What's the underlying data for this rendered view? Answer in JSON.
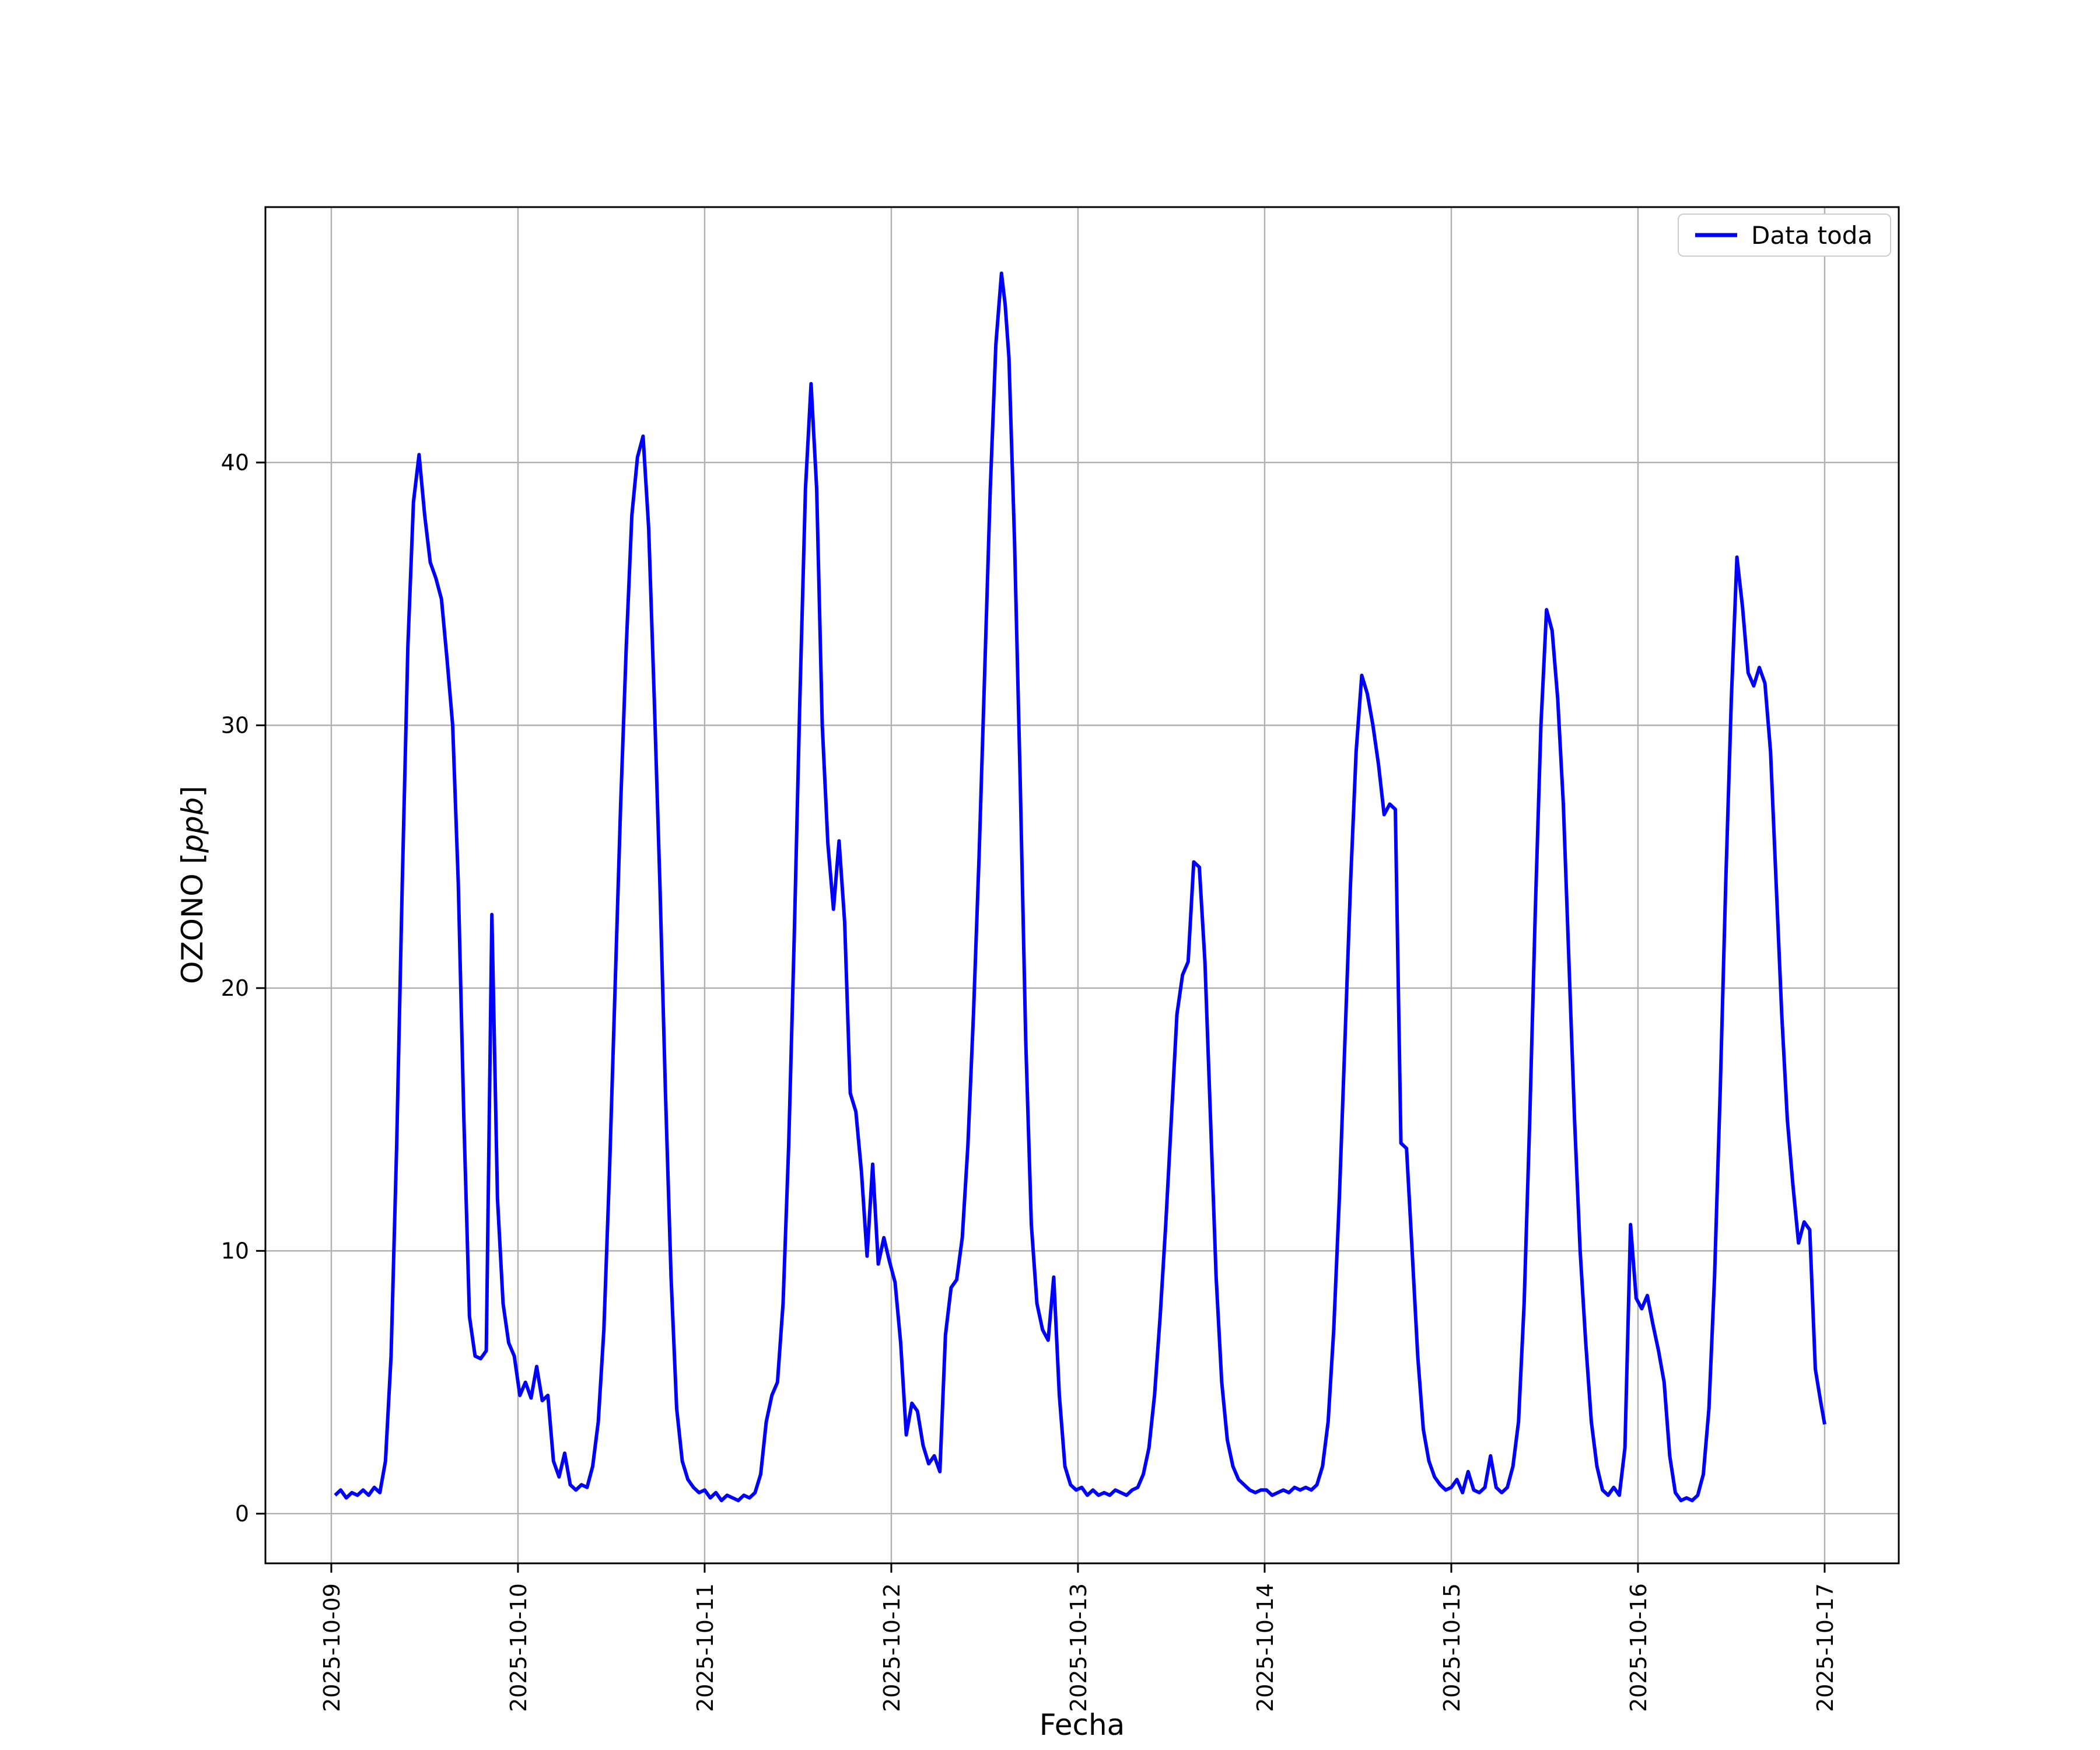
{
  "figure": {
    "background": "#ffffff"
  },
  "chart_data": {
    "type": "line",
    "title": "",
    "xlabel": "Fecha",
    "ylabel_prefix": "OZONO [",
    "ylabel_math": "ppb",
    "ylabel_suffix": "]",
    "line_color": "#0000ff",
    "grid": true,
    "grid_color": "#b0b0b0",
    "legend": {
      "position": "upper right",
      "entries": [
        {
          "label": "Data toda",
          "color": "#0000ff"
        }
      ]
    },
    "xlim_days": [
      -0.353,
      8.397
    ],
    "ylim": [
      -1.89,
      49.72
    ],
    "yticks": [
      0,
      10,
      20,
      30,
      40
    ],
    "xticks": [
      {
        "label": "2025-10-09",
        "day": 0
      },
      {
        "label": "2025-10-10",
        "day": 1
      },
      {
        "label": "2025-10-11",
        "day": 2
      },
      {
        "label": "2025-10-12",
        "day": 3
      },
      {
        "label": "2025-10-13",
        "day": 4
      },
      {
        "label": "2025-10-14",
        "day": 5
      },
      {
        "label": "2025-10-15",
        "day": 6
      },
      {
        "label": "2025-10-16",
        "day": 7
      },
      {
        "label": "2025-10-17",
        "day": 8
      }
    ],
    "series": [
      {
        "name": "Data toda",
        "x": [
          0.02,
          0.05,
          0.08,
          0.11,
          0.14,
          0.17,
          0.2,
          0.23,
          0.26,
          0.29,
          0.32,
          0.35,
          0.38,
          0.41,
          0.44,
          0.47,
          0.5,
          0.53,
          0.56,
          0.59,
          0.62,
          0.65,
          0.68,
          0.71,
          0.74,
          0.77,
          0.8,
          0.83,
          0.86,
          0.89,
          0.92,
          0.95,
          0.98,
          1.01,
          1.04,
          1.07,
          1.1,
          1.13,
          1.16,
          1.19,
          1.22,
          1.25,
          1.28,
          1.31,
          1.34,
          1.37,
          1.4,
          1.43,
          1.46,
          1.49,
          1.52,
          1.55,
          1.58,
          1.61,
          1.64,
          1.67,
          1.7,
          1.73,
          1.76,
          1.79,
          1.82,
          1.85,
          1.88,
          1.91,
          1.94,
          1.97,
          2.0,
          2.03,
          2.06,
          2.09,
          2.12,
          2.15,
          2.18,
          2.21,
          2.24,
          2.27,
          2.3,
          2.33,
          2.36,
          2.39,
          2.42,
          2.45,
          2.48,
          2.51,
          2.54,
          2.57,
          2.6,
          2.63,
          2.66,
          2.69,
          2.72,
          2.75,
          2.78,
          2.81,
          2.84,
          2.87,
          2.9,
          2.93,
          2.96,
          2.99,
          3.02,
          3.05,
          3.08,
          3.11,
          3.14,
          3.17,
          3.2,
          3.23,
          3.26,
          3.29,
          3.32,
          3.35,
          3.38,
          3.41,
          3.44,
          3.47,
          3.5,
          3.53,
          3.56,
          3.59,
          3.61,
          3.63,
          3.66,
          3.69,
          3.72,
          3.75,
          3.78,
          3.81,
          3.84,
          3.87,
          3.9,
          3.93,
          3.96,
          3.99,
          4.02,
          4.05,
          4.08,
          4.11,
          4.14,
          4.17,
          4.2,
          4.23,
          4.26,
          4.29,
          4.32,
          4.35,
          4.38,
          4.41,
          4.44,
          4.47,
          4.5,
          4.53,
          4.56,
          4.59,
          4.62,
          4.65,
          4.68,
          4.71,
          4.74,
          4.77,
          4.8,
          4.83,
          4.86,
          4.89,
          4.92,
          4.95,
          4.98,
          5.01,
          5.04,
          5.07,
          5.1,
          5.13,
          5.16,
          5.19,
          5.22,
          5.25,
          5.28,
          5.31,
          5.34,
          5.37,
          5.4,
          5.43,
          5.46,
          5.49,
          5.52,
          5.55,
          5.58,
          5.61,
          5.64,
          5.67,
          5.7,
          5.73,
          5.76,
          5.79,
          5.82,
          5.85,
          5.88,
          5.91,
          5.94,
          5.97,
          6.0,
          6.03,
          6.06,
          6.09,
          6.12,
          6.15,
          6.18,
          6.21,
          6.24,
          6.27,
          6.3,
          6.33,
          6.36,
          6.39,
          6.42,
          6.45,
          6.48,
          6.51,
          6.54,
          6.57,
          6.6,
          6.63,
          6.66,
          6.69,
          6.72,
          6.75,
          6.78,
          6.81,
          6.84,
          6.87,
          6.9,
          6.93,
          6.96,
          6.99,
          7.02,
          7.05,
          7.08,
          7.11,
          7.14,
          7.17,
          7.2,
          7.23,
          7.26,
          7.29,
          7.32,
          7.35,
          7.38,
          7.41,
          7.44,
          7.47,
          7.5,
          7.53,
          7.56,
          7.59,
          7.62,
          7.65,
          7.68,
          7.71,
          7.74,
          7.77,
          7.8,
          7.83,
          7.86,
          7.89,
          7.92,
          7.95,
          7.98,
          8.0
        ],
        "y": [
          0.7,
          0.9,
          0.6,
          0.8,
          0.7,
          0.9,
          0.7,
          1.0,
          0.8,
          2.0,
          6.0,
          14.0,
          24.0,
          33.0,
          38.5,
          40.3,
          38.0,
          36.2,
          35.6,
          34.8,
          32.5,
          30.0,
          24.0,
          15.0,
          7.5,
          6.0,
          5.9,
          6.2,
          22.8,
          12.0,
          8.0,
          6.5,
          6.0,
          4.5,
          5.0,
          4.4,
          5.6,
          4.3,
          4.5,
          2.0,
          1.4,
          2.3,
          1.1,
          0.9,
          1.1,
          1.0,
          1.8,
          3.5,
          7.0,
          13.0,
          20.0,
          27.0,
          33.0,
          38.0,
          40.2,
          41.0,
          37.5,
          31.0,
          24.0,
          16.0,
          9.0,
          4.0,
          2.0,
          1.3,
          1.0,
          0.8,
          0.9,
          0.6,
          0.8,
          0.5,
          0.7,
          0.6,
          0.5,
          0.7,
          0.6,
          0.8,
          1.5,
          3.5,
          4.5,
          5.0,
          8.0,
          14.0,
          22.0,
          31.0,
          39.0,
          43.0,
          39.0,
          30.0,
          25.5,
          23.0,
          25.6,
          22.5,
          16.0,
          15.3,
          13.0,
          9.8,
          13.3,
          9.5,
          10.5,
          9.6,
          8.8,
          6.5,
          3.0,
          4.2,
          3.9,
          2.6,
          1.9,
          2.2,
          1.6,
          6.8,
          8.6,
          8.9,
          10.5,
          14.0,
          19.0,
          25.0,
          32.0,
          39.0,
          44.5,
          47.2,
          46.0,
          44.0,
          37.0,
          28.0,
          18.0,
          11.0,
          8.0,
          7.0,
          6.6,
          9.0,
          4.5,
          1.8,
          1.1,
          0.9,
          1.0,
          0.7,
          0.9,
          0.7,
          0.8,
          0.7,
          0.9,
          0.8,
          0.7,
          0.9,
          1.0,
          1.5,
          2.5,
          4.5,
          7.5,
          11.0,
          15.0,
          19.0,
          20.5,
          21.0,
          24.8,
          24.6,
          21.0,
          15.0,
          9.0,
          5.0,
          2.8,
          1.8,
          1.3,
          1.1,
          0.9,
          0.8,
          0.9,
          0.9,
          0.7,
          0.8,
          0.9,
          0.8,
          1.0,
          0.9,
          1.0,
          0.9,
          1.1,
          1.8,
          3.5,
          7.0,
          12.0,
          18.0,
          24.0,
          29.0,
          31.9,
          31.2,
          30.0,
          28.5,
          26.6,
          27.0,
          26.8,
          14.1,
          13.9,
          10.0,
          6.0,
          3.2,
          2.0,
          1.4,
          1.1,
          0.9,
          1.0,
          1.3,
          0.8,
          1.6,
          0.9,
          0.8,
          1.0,
          2.2,
          1.0,
          0.8,
          1.0,
          1.8,
          3.5,
          8.0,
          15.0,
          23.0,
          30.0,
          34.4,
          33.6,
          31.0,
          27.0,
          21.0,
          15.0,
          10.0,
          6.5,
          3.5,
          1.8,
          0.9,
          0.7,
          1.0,
          0.7,
          2.5,
          11.0,
          8.2,
          7.8,
          8.3,
          7.2,
          6.2,
          5.0,
          2.2,
          0.8,
          0.5,
          0.6,
          0.5,
          0.7,
          1.5,
          4.0,
          9.0,
          16.0,
          24.0,
          31.0,
          36.4,
          34.5,
          32.0,
          31.5,
          32.2,
          31.6,
          29.0,
          24.0,
          19.0,
          15.0,
          12.5,
          10.3,
          11.1,
          10.8,
          5.5,
          4.2,
          3.4
        ]
      }
    ]
  }
}
